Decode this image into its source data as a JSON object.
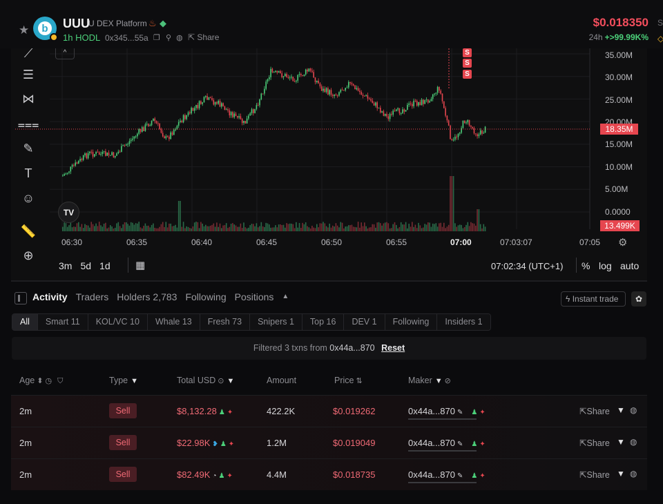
{
  "header": {
    "token_name": "UUU",
    "platform": "U DEX Platform",
    "tag": "1h HODL",
    "address": "0x345...55a",
    "share_label": "Share",
    "price": "$0.018350",
    "change_label": "24h",
    "change_value": "+>99.99K%",
    "right_edge_s": "S"
  },
  "chart": {
    "collapse_label": "^",
    "y_labels": [
      "35.00M",
      "30.00M",
      "25.00M",
      "20.00M",
      "15.00M",
      "10.00M",
      "5.00M",
      "0.0000"
    ],
    "x_labels": [
      "06:30",
      "06:35",
      "06:40",
      "06:45",
      "06:50",
      "06:55",
      "07:00",
      "07:03:07",
      "07:05"
    ],
    "current_price_tag": "18.35M",
    "volume_tag": "13.499K",
    "tv_logo": "TV",
    "markers": [
      "S",
      "S",
      "S"
    ],
    "timeframes": [
      "3m",
      "5d",
      "1d"
    ],
    "clock": "07:02:34 (UTC+1)",
    "scale_buttons": [
      "%",
      "log",
      "auto"
    ],
    "up_color": "#4cd07a",
    "down_color": "#e6464f"
  },
  "chart_data": {
    "type": "candlestick",
    "x_unit": "time",
    "ylim": [
      0,
      35000000
    ],
    "current_value": 18350000,
    "price_series": [
      {
        "t": "06:30",
        "v": 8000000
      },
      {
        "t": "06:32",
        "v": 13000000
      },
      {
        "t": "06:34",
        "v": 12500000
      },
      {
        "t": "06:36",
        "v": 18000000
      },
      {
        "t": "06:37",
        "v": 20500000
      },
      {
        "t": "06:38",
        "v": 16000000
      },
      {
        "t": "06:39",
        "v": 20000000
      },
      {
        "t": "06:41",
        "v": 25000000
      },
      {
        "t": "06:42",
        "v": 24000000
      },
      {
        "t": "06:44",
        "v": 19500000
      },
      {
        "t": "06:45",
        "v": 24000000
      },
      {
        "t": "06:46",
        "v": 31000000
      },
      {
        "t": "06:48",
        "v": 29500000
      },
      {
        "t": "06:49",
        "v": 31500000
      },
      {
        "t": "06:50",
        "v": 27000000
      },
      {
        "t": "06:51",
        "v": 26000000
      },
      {
        "t": "06:52",
        "v": 28500000
      },
      {
        "t": "06:54",
        "v": 24000000
      },
      {
        "t": "06:55",
        "v": 21000000
      },
      {
        "t": "06:57",
        "v": 24000000
      },
      {
        "t": "06:58",
        "v": 24500000
      },
      {
        "t": "06:59",
        "v": 27500000
      },
      {
        "t": "07:00",
        "v": 15000000
      },
      {
        "t": "07:01",
        "v": 20500000
      },
      {
        "t": "07:02",
        "v": 17000000
      },
      {
        "t": "07:02:34",
        "v": 18350000
      }
    ],
    "volume_series": [
      {
        "t": "06:39",
        "v": 0.55
      },
      {
        "t": "07:00",
        "v": 1.0
      },
      {
        "t": "07:02",
        "v": 0.4
      }
    ]
  },
  "activity": {
    "tabs": [
      "Activity",
      "Traders",
      "Holders 2,783",
      "Following",
      "Positions"
    ],
    "instant_trade": "Instant trade",
    "filters": [
      "All",
      "Smart 11",
      "KOL/VC 10",
      "Whale 13",
      "Fresh 73",
      "Snipers 1",
      "Top 16",
      "DEV 1",
      "Following",
      "Insiders 1"
    ],
    "filter_text": "Filtered 3 txns from",
    "filter_addr": "0x44a...870",
    "reset": "Reset",
    "columns": [
      "Age",
      "Type",
      "Total USD",
      "Amount",
      "Price",
      "Maker"
    ],
    "rows": [
      {
        "age": "2m",
        "type": "Sell",
        "usd": "$8,132.28",
        "amount": "422.2K",
        "price": "$0.019262",
        "maker": "0x44a...870",
        "share": "Share"
      },
      {
        "age": "2m",
        "type": "Sell",
        "usd": "$22.98K",
        "amount": "1.2M",
        "price": "$0.019049",
        "maker": "0x44a...870",
        "share": "Share"
      },
      {
        "age": "2m",
        "type": "Sell",
        "usd": "$82.49K",
        "amount": "4.4M",
        "price": "$0.018735",
        "maker": "0x44a...870",
        "share": "Share"
      }
    ]
  }
}
